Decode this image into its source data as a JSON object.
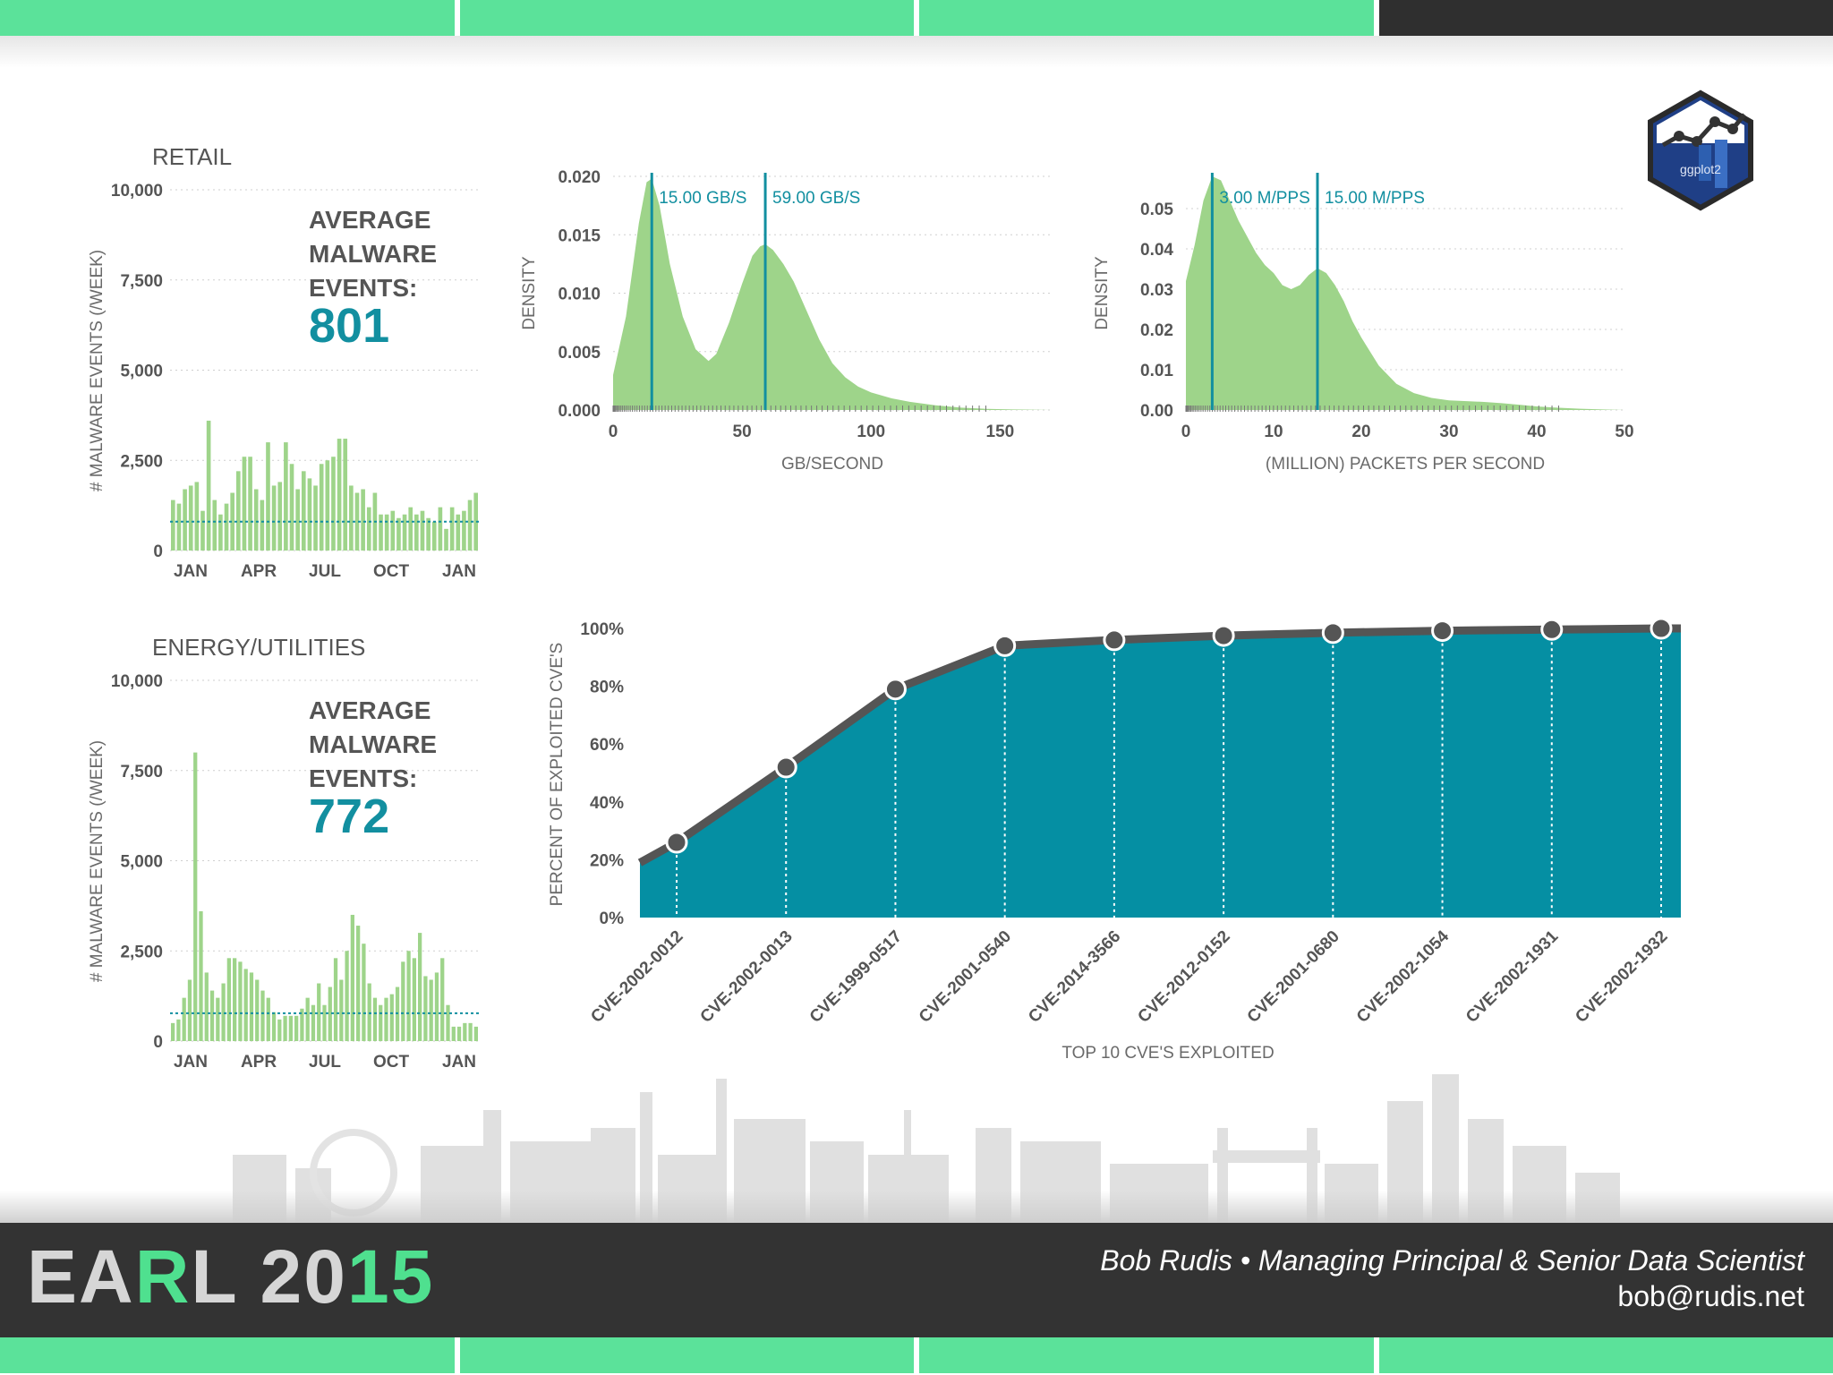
{
  "colors": {
    "accent_green": "#5be29a",
    "teal": "#128fa0",
    "bar_green": "#9ed48a",
    "area_teal": "#058fa3",
    "dark": "#333333"
  },
  "icon": {
    "name": "ggplot2-hex-logo",
    "label": "ggplot2"
  },
  "footer": {
    "brand_parts": [
      {
        "text": "EA",
        "style": "w"
      },
      {
        "text": "R",
        "style": "g"
      },
      {
        "text": "L ",
        "style": "w"
      },
      {
        "text": "20",
        "style": "w"
      },
      {
        "text": "15",
        "style": "g"
      }
    ],
    "credit": "Bob Rudis • Managing Principal & Senior Data Scientist",
    "email": "bob@rudis.net"
  },
  "chart_data": [
    {
      "id": "retail",
      "type": "bar",
      "title": "RETAIL",
      "ylabel": "# MALWARE EVENTS (/WEEK)",
      "ylim": [
        0,
        10000
      ],
      "yticks": [
        0,
        2500,
        5000,
        7500,
        10000
      ],
      "ytick_labels": [
        "0",
        "2,500",
        "5,000",
        "7,500",
        "10,000"
      ],
      "xtick_labels": [
        "JAN",
        "APR",
        "JUL",
        "OCT",
        "JAN"
      ],
      "annotation_lines": [
        "AVERAGE",
        "MALWARE",
        "EVENTS:"
      ],
      "average_label": "801",
      "average": 801,
      "values": [
        1400,
        1300,
        1700,
        1800,
        1900,
        1100,
        3600,
        1400,
        1000,
        1300,
        1600,
        2200,
        2600,
        2600,
        1700,
        1400,
        3000,
        1800,
        1900,
        3000,
        2400,
        1700,
        2200,
        2000,
        1800,
        2400,
        2500,
        2600,
        3100,
        3100,
        1800,
        1600,
        1700,
        1200,
        1600,
        1000,
        1000,
        1100,
        900,
        1000,
        1200,
        1000,
        1100,
        900,
        800,
        1200,
        600,
        1200,
        1000,
        1100,
        1400,
        1600
      ]
    },
    {
      "id": "energy",
      "type": "bar",
      "title": "ENERGY/UTILITIES",
      "ylabel": "# MALWARE EVENTS (/WEEK)",
      "ylim": [
        0,
        10000
      ],
      "yticks": [
        0,
        2500,
        5000,
        7500,
        10000
      ],
      "ytick_labels": [
        "0",
        "2,500",
        "5,000",
        "7,500",
        "10,000"
      ],
      "xtick_labels": [
        "JAN",
        "APR",
        "JUL",
        "OCT",
        "JAN"
      ],
      "annotation_lines": [
        "AVERAGE",
        "MALWARE",
        "EVENTS:"
      ],
      "average_label": "772",
      "average": 772,
      "values": [
        500,
        600,
        1200,
        1700,
        8000,
        3600,
        1900,
        1400,
        1200,
        1600,
        2300,
        2300,
        2200,
        2000,
        1900,
        1700,
        1400,
        1200,
        800,
        600,
        700,
        700,
        700,
        900,
        1200,
        1000,
        1600,
        1000,
        1500,
        2300,
        1700,
        2500,
        3500,
        3200,
        2700,
        1600,
        1200,
        1000,
        1200,
        1300,
        1500,
        2200,
        2500,
        2300,
        3000,
        1800,
        1700,
        1900,
        2300,
        1000,
        400,
        400,
        500,
        500,
        400
      ]
    },
    {
      "id": "gbps",
      "type": "area",
      "subtype": "density",
      "xlabel": "GB/SECOND",
      "ylabel": "DENSITY",
      "xlim": [
        0,
        170
      ],
      "ylim": [
        0,
        0.02
      ],
      "xticks": [
        0,
        50,
        100,
        150
      ],
      "xtick_labels": [
        "0",
        "50",
        "100",
        "150"
      ],
      "yticks": [
        0,
        0.005,
        0.01,
        0.015,
        0.02
      ],
      "ytick_labels": [
        "0.000",
        "0.005",
        "0.010",
        "0.015",
        "0.020"
      ],
      "vlines": [
        {
          "x": 15,
          "label": "15.00 GB/S"
        },
        {
          "x": 59,
          "label": "59.00 GB/S"
        }
      ],
      "x": [
        0,
        5,
        10,
        13,
        15,
        18,
        22,
        27,
        32,
        37,
        40,
        45,
        50,
        54,
        57,
        59,
        62,
        66,
        70,
        75,
        80,
        85,
        90,
        95,
        100,
        108,
        115,
        125,
        135,
        145,
        155,
        170
      ],
      "y": [
        0.003,
        0.008,
        0.016,
        0.0195,
        0.0198,
        0.0175,
        0.0125,
        0.008,
        0.0052,
        0.0042,
        0.0048,
        0.0075,
        0.0108,
        0.0132,
        0.014,
        0.0142,
        0.0137,
        0.0125,
        0.011,
        0.0085,
        0.006,
        0.004,
        0.0028,
        0.002,
        0.0015,
        0.001,
        0.0007,
        0.0004,
        0.0002,
        0.0001,
        5e-05,
        0
      ]
    },
    {
      "id": "mpps",
      "type": "area",
      "subtype": "density",
      "xlabel": "(MILLION) PACKETS PER SECOND",
      "ylabel": "DENSITY",
      "xlim": [
        0,
        50
      ],
      "ylim": [
        0,
        0.058
      ],
      "xticks": [
        0,
        10,
        20,
        30,
        40,
        50
      ],
      "xtick_labels": [
        "0",
        "10",
        "20",
        "30",
        "40",
        "50"
      ],
      "yticks": [
        0,
        0.01,
        0.02,
        0.03,
        0.04,
        0.05
      ],
      "ytick_labels": [
        "0.00",
        "0.01",
        "0.02",
        "0.03",
        "0.04",
        "0.05"
      ],
      "vlines": [
        {
          "x": 3,
          "label": "3.00 M/PPS"
        },
        {
          "x": 15,
          "label": "15.00 M/PPS"
        }
      ],
      "x": [
        0,
        1,
        2,
        3,
        4,
        5,
        6,
        7,
        8,
        9,
        10,
        11,
        12,
        13,
        14,
        15,
        16,
        17,
        18,
        19,
        20,
        22,
        24,
        26,
        28,
        30,
        32,
        34,
        36,
        38,
        40,
        42,
        45,
        48,
        50
      ],
      "y": [
        0.032,
        0.041,
        0.052,
        0.058,
        0.057,
        0.052,
        0.047,
        0.043,
        0.039,
        0.036,
        0.034,
        0.031,
        0.03,
        0.031,
        0.0335,
        0.0352,
        0.034,
        0.031,
        0.027,
        0.022,
        0.018,
        0.011,
        0.0065,
        0.0042,
        0.003,
        0.0024,
        0.0022,
        0.002,
        0.0017,
        0.0013,
        0.0009,
        0.0006,
        0.0003,
        0.0001,
        0
      ]
    },
    {
      "id": "cve",
      "type": "area",
      "subtype": "cumulative",
      "xlabel": "TOP 10 CVE'S EXPLOITED",
      "ylabel": "PERCENT OF EXPLOITED CVE'S",
      "ylim": [
        0,
        100
      ],
      "yticks": [
        0,
        20,
        40,
        60,
        80,
        100
      ],
      "ytick_labels": [
        "0%",
        "20%",
        "40%",
        "60%",
        "80%",
        "100%"
      ],
      "categories": [
        "CVE-2002-0012",
        "CVE-2002-0013",
        "CVE-1999-0517",
        "CVE-2001-0540",
        "CVE-2014-3566",
        "CVE-2012-0152",
        "CVE-2001-0680",
        "CVE-2002-1054",
        "CVE-2002-1931",
        "CVE-2002-1932"
      ],
      "values": [
        26,
        52,
        79,
        94,
        96,
        97.5,
        98.5,
        99.2,
        99.6,
        100
      ],
      "start_value": 19
    }
  ]
}
